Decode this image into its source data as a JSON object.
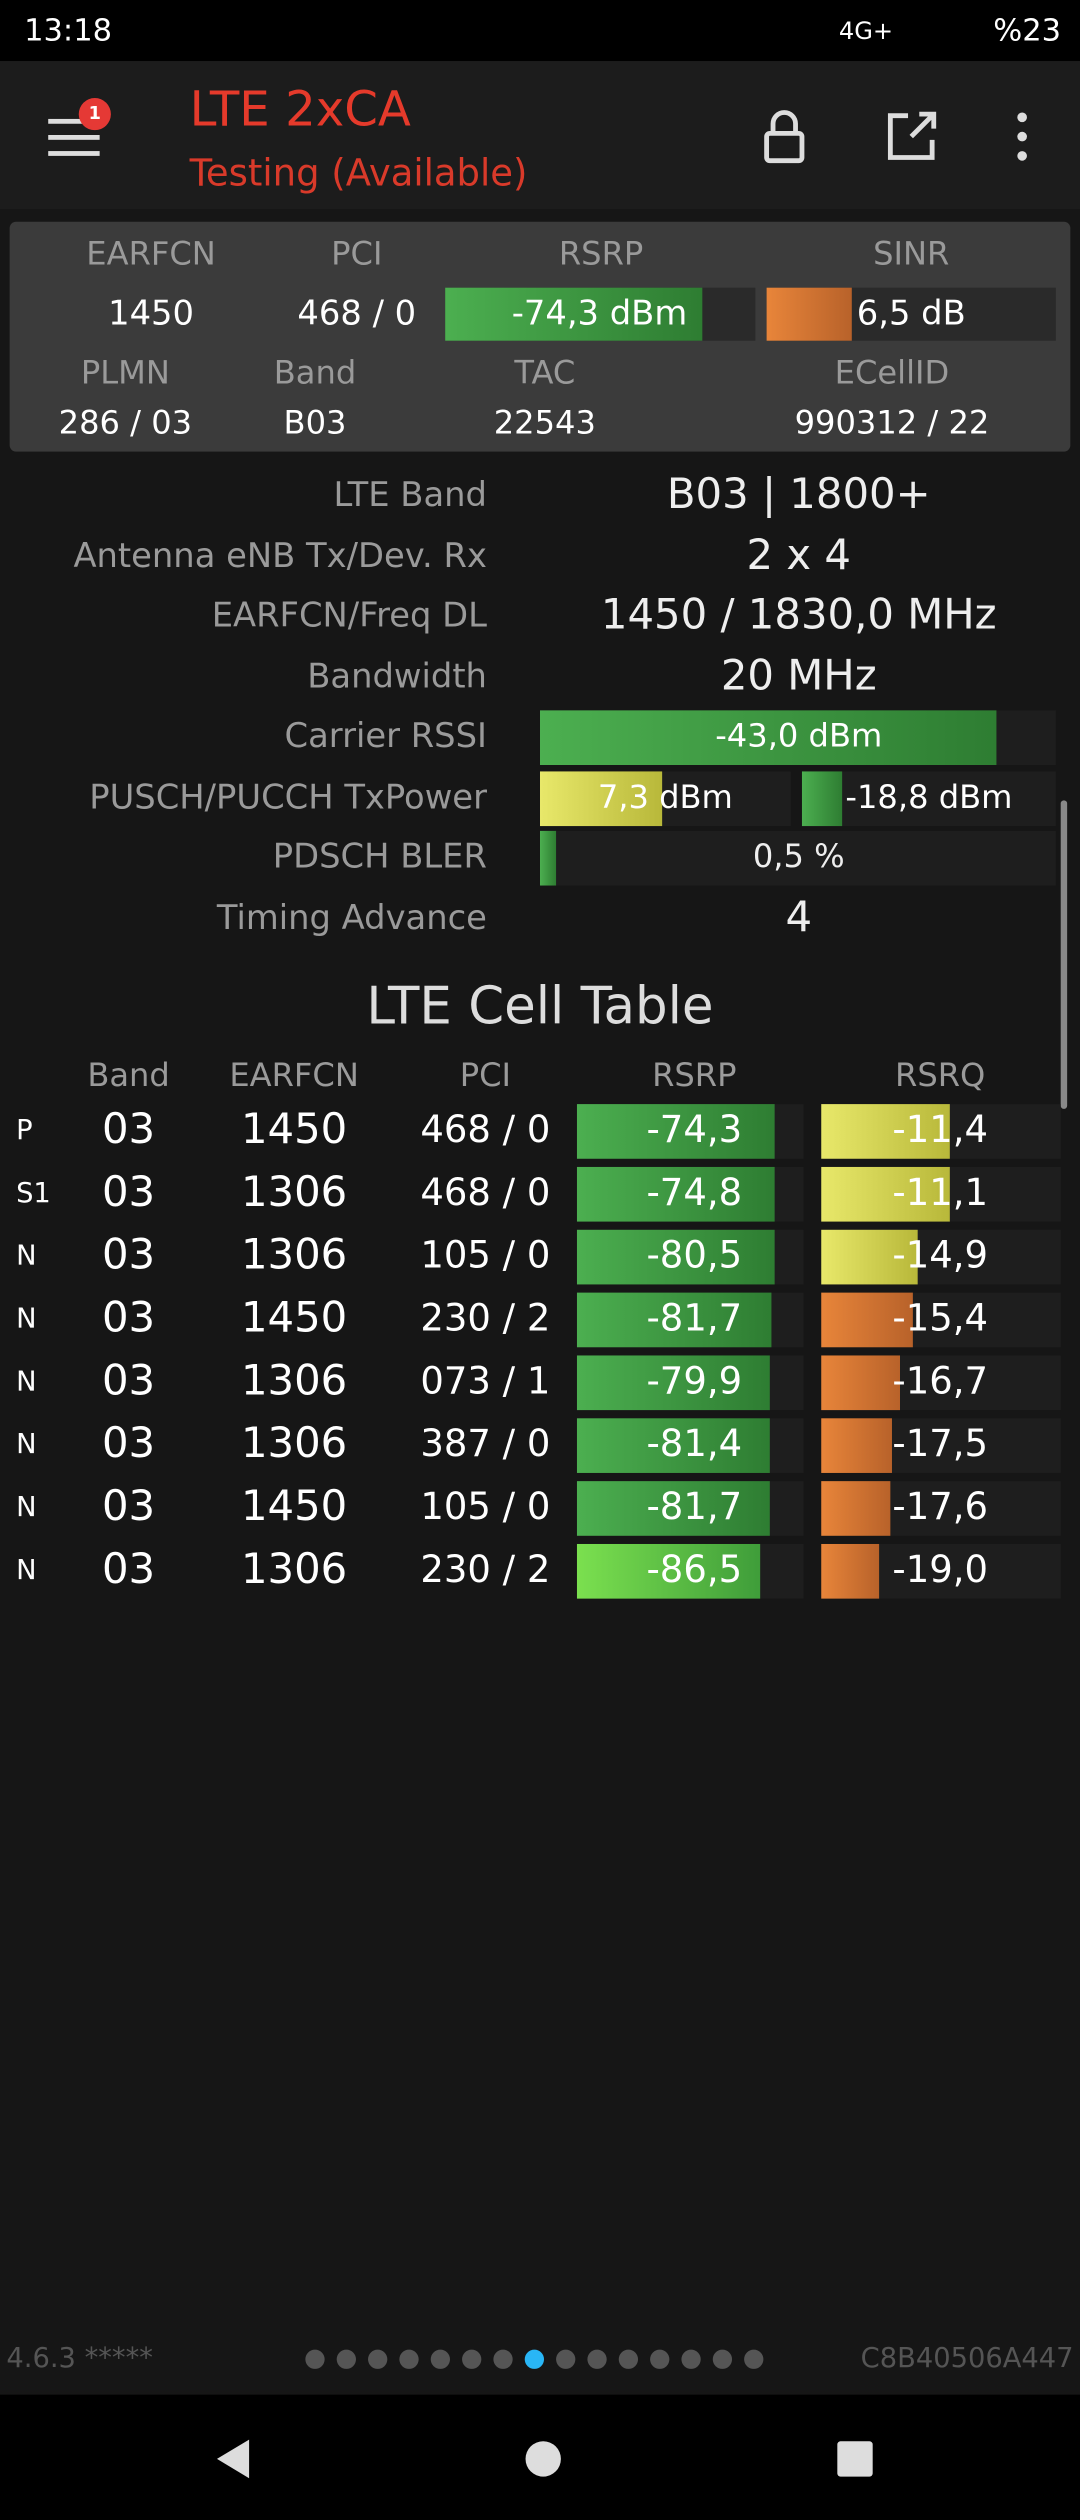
{
  "status_bar": {
    "time": "13:18",
    "network": "4G+",
    "battery": "%23"
  },
  "app_bar": {
    "title": "LTE 2xCA",
    "subtitle": "Testing (Available)",
    "badge": "1"
  },
  "summary": {
    "headers1": [
      "EARFCN",
      "PCI",
      "RSRP",
      "SINR"
    ],
    "values1": [
      "1450",
      "468 / 0",
      "-74,3 dBm",
      "6,5 dB"
    ],
    "headers2": [
      "PLMN",
      "Band",
      "TAC",
      "ECellID"
    ],
    "values2": [
      "286 / 03",
      "B03",
      "22543",
      "990312 / 22"
    ]
  },
  "details": [
    {
      "label": "LTE Band",
      "value": "B03 | 1800+"
    },
    {
      "label": "Antenna eNB Tx/Dev. Rx",
      "value": "2 x 4"
    },
    {
      "label": "EARFCN/Freq DL",
      "value": "1450 / 1830,0 MHz"
    },
    {
      "label": "Bandwidth",
      "value": "20 MHz"
    },
    {
      "label": "Carrier RSSI",
      "value": "-43,0 dBm"
    },
    {
      "label": "PUSCH/PUCCH TxPower",
      "value": "7,3 dBm",
      "value2": "-18,8 dBm"
    },
    {
      "label": "PDSCH BLER",
      "value": "0,5 %"
    },
    {
      "label": "Timing Advance",
      "value": "4"
    }
  ],
  "cell_table": {
    "title": "LTE Cell Table",
    "headers": [
      "Band",
      "EARFCN",
      "PCI",
      "RSRP",
      "RSRQ"
    ],
    "rows": [
      [
        "P",
        "03",
        "1450",
        "468 / 0",
        "-74,3",
        "-11,4"
      ],
      [
        "S1",
        "03",
        "1306",
        "468 / 0",
        "-74,8",
        "-11,1"
      ],
      [
        "N",
        "03",
        "1306",
        "105 / 0",
        "-80,5",
        "-14,9"
      ],
      [
        "N",
        "03",
        "1450",
        "230 / 2",
        "-81,7",
        "-15,4"
      ],
      [
        "N",
        "03",
        "1306",
        "073 / 1",
        "-79,9",
        "-16,7"
      ],
      [
        "N",
        "03",
        "1306",
        "387 / 0",
        "-81,4",
        "-17,5"
      ],
      [
        "N",
        "03",
        "1450",
        "105 / 0",
        "-81,7",
        "-17,6"
      ],
      [
        "N",
        "03",
        "1306",
        "230 / 2",
        "-86,5",
        "-19,0"
      ]
    ]
  },
  "footer": {
    "version": "4.6.3 *****",
    "device_id": "C8B40506A447"
  }
}
